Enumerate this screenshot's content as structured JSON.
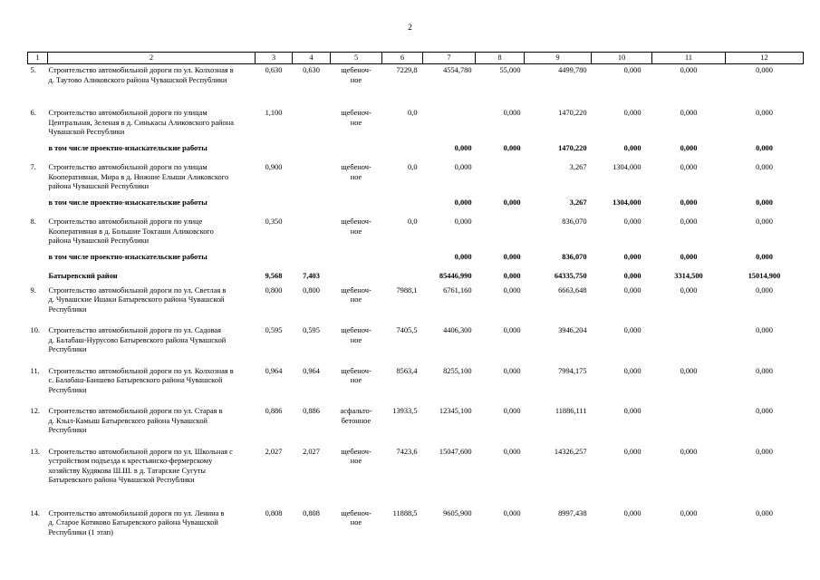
{
  "page": {
    "number": "2"
  },
  "table": {
    "columns": [
      "1",
      "2",
      "3",
      "4",
      "5",
      "6",
      "7",
      "8",
      "9",
      "10",
      "11",
      "12"
    ],
    "rows": [
      {
        "type": "item",
        "num": "5.",
        "desc": "Строительство автомобильной дороги по ул. Колхозная в\nд. Таутово Аликовского района Чувашской Республики",
        "c3": "0,630",
        "c4": "0,630",
        "c5": "щебеноч-\nное",
        "c6": "7229,8",
        "c7": "4554,780",
        "c8": "55,000",
        "c9": "4499,780",
        "c10": "0,000",
        "c11": "0,000",
        "c12": "0,000"
      },
      {
        "type": "item",
        "num": "6.",
        "desc": "Строительство автомобильной дороги по улицам\nЦентральная, Зеленая в д. Синькасы Аликовского района\nЧувашской Республики",
        "c3": "1,100",
        "c4": "",
        "c5": "щебеноч-\nное",
        "c6": "0,0",
        "c7": "",
        "c8": "0,000",
        "c9": "1470,220",
        "c10": "0,000",
        "c11": "0,000",
        "c12": "0,000"
      },
      {
        "type": "sub",
        "num": "",
        "desc": "в том числе проектно-изыскательские работы",
        "c3": "",
        "c4": "",
        "c5": "",
        "c6": "",
        "c7": "0,000",
        "c8": "0,000",
        "c9": "1470,220",
        "c10": "0,000",
        "c11": "0,000",
        "c12": "0,000"
      },
      {
        "type": "item",
        "num": "7.",
        "desc": "Строительство автомобильной дороги по улицам\nКооперативная, Мира в д. Нижние Елыши Аликовского\nрайона Чувашской Республики",
        "c3": "0,900",
        "c4": "",
        "c5": "щебеноч-\nное",
        "c6": "0,0",
        "c7": "0,000",
        "c8": "",
        "c9": "3,267",
        "c10": "1304,000",
        "c11": "0,000",
        "c12": "0,000"
      },
      {
        "type": "sub",
        "num": "",
        "desc": "в том числе проектно-изыскательские работы",
        "c3": "",
        "c4": "",
        "c5": "",
        "c6": "",
        "c7": "0,000",
        "c8": "0,000",
        "c9": "3,267",
        "c10": "1304,000",
        "c11": "0,000",
        "c12": "0,000"
      },
      {
        "type": "item",
        "num": "8.",
        "desc": "Строительство автомобильной дороги по улице\nКооперативная в д. Большие Токташи Аликовского\nрайона Чувашской Республики",
        "c3": "0,350",
        "c4": "",
        "c5": "щебеноч-\nное",
        "c6": "0,0",
        "c7": "0,000",
        "c8": "",
        "c9": "836,070",
        "c10": "0,000",
        "c11": "0,000",
        "c12": "0,000"
      },
      {
        "type": "sub",
        "num": "",
        "desc": "в том числе проектно-изыскательские работы",
        "c3": "",
        "c4": "",
        "c5": "",
        "c6": "",
        "c7": "0,000",
        "c8": "0,000",
        "c9": "836,070",
        "c10": "0,000",
        "c11": "0,000",
        "c12": "0,000"
      },
      {
        "type": "section",
        "num": "",
        "desc": "Батыревский район",
        "c3": "9,568",
        "c4": "7,403",
        "c5": "",
        "c6": "",
        "c7": "85446,990",
        "c8": "0,000",
        "c9": "64335,750",
        "c10": "0,000",
        "c11": "3314,500",
        "c12": "15014,900"
      },
      {
        "type": "item",
        "num": "9.",
        "desc": "Строительство автомобильной дороги по ул. Светлая в\nд. Чувашские Ишаки Батыревского района Чувашской\nРеспублики",
        "c3": "0,800",
        "c4": "0,800",
        "c5": "щебеноч-\nное",
        "c6": "7988,1",
        "c7": "6761,160",
        "c8": "0,000",
        "c9": "6663,648",
        "c10": "0,000",
        "c11": "0,000",
        "c12": "0,000"
      },
      {
        "type": "item",
        "num": "10.",
        "desc": "Строительство автомобильной дороги по ул. Садовая\nд. Балабаш-Нурусово Батыревского района Чувашской\nРеспублики",
        "c3": "0,595",
        "c4": "0,595",
        "c5": "щебеноч-\nное",
        "c6": "7405,5",
        "c7": "4406,300",
        "c8": "0,000",
        "c9": "3946,204",
        "c10": "0,000",
        "c11": "",
        "c12": "0,000"
      },
      {
        "type": "item",
        "num": "11.",
        "desc": "Строительство автомобильной дороги по ул. Колхозная в\nс. Балабаш-Баишево Батыревского района Чувашской\nРеспублики",
        "c3": "0,964",
        "c4": "0,964",
        "c5": "щебеноч-\nное",
        "c6": "8563,4",
        "c7": "8255,100",
        "c8": "0,000",
        "c9": "7994,175",
        "c10": "0,000",
        "c11": "0,000",
        "c12": "0,000"
      },
      {
        "type": "item",
        "num": "12.",
        "desc": "Строительство автомобильной дороги по ул. Старая в\nд. Кзыл-Камыш Батыревского района Чувашской\nРеспублики",
        "c3": "0,886",
        "c4": "0,886",
        "c5": "асфальто-\nбетонное",
        "c6": "13933,5",
        "c7": "12345,100",
        "c8": "0,000",
        "c9": "11886,111",
        "c10": "0,000",
        "c11": "",
        "c12": "0,000"
      },
      {
        "type": "item",
        "num": "13.",
        "desc": "Строительство автомобильной дороги по ул. Школьная с\nустройством подъезда к крестьянско-фермерскому\nхозяйству Кудякова Ш.Ш. в д. Татарские Сугуты\nБатыревского района Чувашской Республики",
        "c3": "2,027",
        "c4": "2,027",
        "c5": "щебеноч-\nное",
        "c6": "7423,6",
        "c7": "15047,600",
        "c8": "0,000",
        "c9": "14326,257",
        "c10": "0,000",
        "c11": "0,000",
        "c12": "0,000"
      },
      {
        "type": "item",
        "num": "14.",
        "desc": "Строительство автомобильной дороги по ул. Ленина в\nд. Старое Котяково  Батыревского района Чувашской\nРеспублики (1 этап)",
        "c3": "0,808",
        "c4": "0,808",
        "c5": "щебеноч-\nное",
        "c6": "11888,5",
        "c7": "9605,900",
        "c8": "0,000",
        "c9": "8997,438",
        "c10": "0,000",
        "c11": "0,000",
        "c12": "0,000"
      }
    ]
  }
}
